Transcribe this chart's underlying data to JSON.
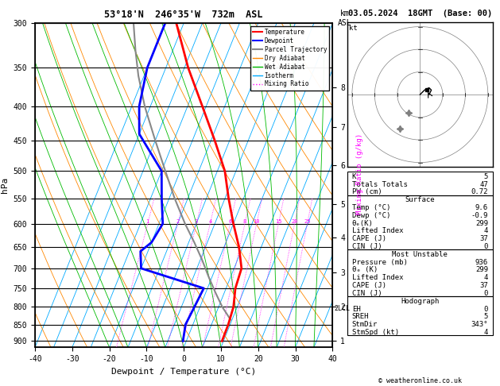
{
  "title_left": "53°18'N  246°35'W  732m  ASL",
  "title_right": "03.05.2024  18GMT  (Base: 00)",
  "xlabel": "Dewpoint / Temperature (°C)",
  "ylabel_left": "hPa",
  "pressure_ticks": [
    300,
    350,
    400,
    450,
    500,
    550,
    600,
    650,
    700,
    750,
    800,
    850,
    900
  ],
  "temp_range": [
    -40,
    40
  ],
  "skew_factor": 35.0,
  "isotherm_temps": [
    -40,
    -35,
    -30,
    -25,
    -20,
    -15,
    -10,
    -5,
    0,
    5,
    10,
    15,
    20,
    25,
    30,
    35,
    40
  ],
  "dry_adiabat_thetas": [
    -40,
    -30,
    -20,
    -10,
    0,
    10,
    20,
    30,
    40,
    50,
    60,
    70,
    80,
    90,
    100
  ],
  "wet_adiabat_t0s": [
    -20,
    -15,
    -10,
    -5,
    0,
    5,
    10,
    15,
    20,
    25,
    30,
    35
  ],
  "mixing_ratio_values": [
    1,
    2,
    3,
    4,
    6,
    8,
    10,
    15,
    20,
    25
  ],
  "km_ticks": [
    1,
    2,
    3,
    4,
    5,
    6,
    7,
    8
  ],
  "km_pressures": [
    900,
    800,
    710,
    630,
    560,
    490,
    430,
    375
  ],
  "background_color": "#ffffff",
  "isotherm_color": "#00aaff",
  "dry_adiabat_color": "#ff8800",
  "wet_adiabat_color": "#00bb00",
  "mixing_ratio_color": "#ff00ff",
  "temp_profile_color": "#ff0000",
  "dewp_profile_color": "#0000ff",
  "parcel_color": "#888888",
  "lcl_pressure": 805,
  "temperature_profile_p": [
    300,
    350,
    400,
    450,
    500,
    550,
    600,
    650,
    700,
    750,
    800,
    850,
    900
  ],
  "temperature_profile_t": [
    -37,
    -29,
    -21,
    -14,
    -8,
    -4,
    0,
    4,
    7,
    7.5,
    9,
    9.5,
    9.6
  ],
  "dewpoint_profile_p": [
    300,
    350,
    400,
    440,
    500,
    550,
    600,
    640,
    660,
    700,
    750,
    800,
    850,
    900
  ],
  "dewpoint_profile_t": [
    -40,
    -40,
    -38,
    -35,
    -25,
    -22,
    -19,
    -20,
    -22,
    -20,
    -1,
    -1.5,
    -2,
    -0.9
  ],
  "parcel_profile_p": [
    836,
    800,
    760,
    720,
    680,
    640,
    600,
    550,
    500,
    450,
    400,
    360,
    330,
    300
  ],
  "parcel_profile_t": [
    9.6,
    6.0,
    2.5,
    -1.0,
    -4.5,
    -8.5,
    -13.0,
    -18.5,
    -24.0,
    -30.0,
    -36.5,
    -41.5,
    -45.0,
    -48.5
  ],
  "hodo_trace_u": [
    0,
    2,
    4,
    5,
    4
  ],
  "hodo_trace_v": [
    0,
    2,
    3,
    2,
    0
  ],
  "hodo_storm_u": 3,
  "hodo_storm_v": 2,
  "hodo_grey_points": [
    [
      -5,
      -8
    ],
    [
      -9,
      -15
    ]
  ],
  "table_K": 5,
  "table_TT": 47,
  "table_PW": "0.72",
  "table_surf_temp": "9.6",
  "table_surf_dewp": "-0.9",
  "table_surf_theta_e": 299,
  "table_surf_LI": 4,
  "table_surf_CAPE": 37,
  "table_surf_CIN": 0,
  "table_mu_pressure": 936,
  "table_mu_theta_e": 299,
  "table_mu_LI": 4,
  "table_mu_CAPE": 37,
  "table_mu_CIN": 0,
  "table_EH": 0,
  "table_SREH": 5,
  "table_StmDir": "343°",
  "table_StmSpd": 4,
  "pmin": 300,
  "pmax": 920
}
